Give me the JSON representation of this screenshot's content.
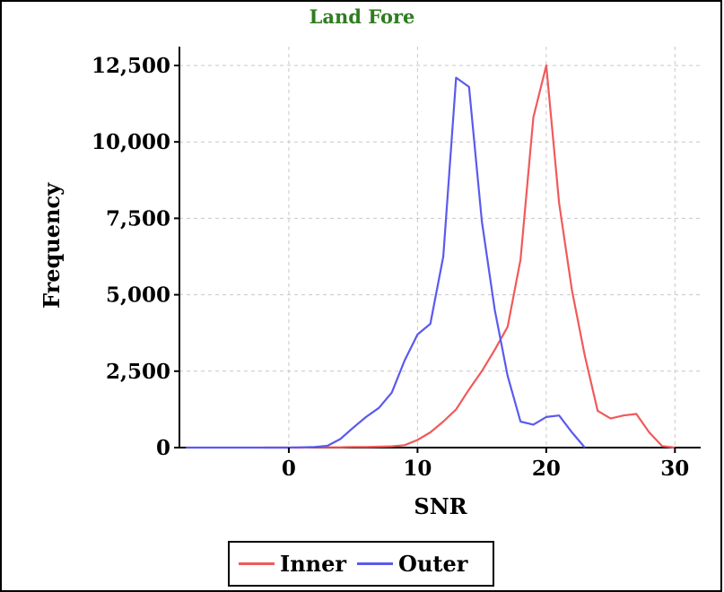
{
  "chart_data": {
    "type": "line",
    "title": "Land Fore",
    "xlabel": "SNR",
    "ylabel": "Frequency",
    "xlim": [
      -8.5,
      32
    ],
    "ylim": [
      0,
      12500
    ],
    "xticks": [
      0,
      10,
      20,
      30
    ],
    "xtick_labels": [
      "0",
      "10",
      "20",
      "30"
    ],
    "yticks": [
      0,
      2500,
      5000,
      7500,
      10000,
      12500
    ],
    "ytick_labels": [
      "0",
      "2,500",
      "5,000",
      "7,500",
      "10,000",
      "12,500"
    ],
    "grid": true,
    "legend_position": "bottom",
    "series": [
      {
        "name": "Inner",
        "color": "#f05a5a",
        "x": [
          -2,
          -1,
          0,
          1,
          2,
          3,
          4,
          5,
          6,
          7,
          8,
          9,
          10,
          11,
          12,
          13,
          14,
          15,
          16,
          17,
          18,
          19,
          20,
          21,
          22,
          23,
          24,
          25,
          26,
          27,
          28,
          29,
          30
        ],
        "y": [
          0,
          0,
          0,
          0,
          10,
          10,
          10,
          20,
          20,
          30,
          40,
          80,
          250,
          500,
          850,
          1250,
          1900,
          2500,
          3200,
          3950,
          6150,
          10800,
          12500,
          8000,
          5150,
          3000,
          1200,
          950,
          1050,
          1100,
          500,
          50,
          0
        ]
      },
      {
        "name": "Outer",
        "color": "#5a5aee",
        "x": [
          -8,
          -7,
          -6,
          -5,
          -4,
          -3,
          -2,
          -1,
          0,
          1,
          2,
          3,
          4,
          5,
          6,
          7,
          8,
          9,
          10,
          11,
          12,
          13,
          14,
          15,
          16,
          17,
          18,
          19,
          20,
          21,
          22,
          23
        ],
        "y": [
          0,
          0,
          0,
          0,
          0,
          0,
          0,
          0,
          0,
          10,
          20,
          60,
          280,
          650,
          1000,
          1300,
          1800,
          2850,
          3700,
          4050,
          6250,
          12100,
          11800,
          7400,
          4500,
          2350,
          850,
          750,
          1000,
          1050,
          500,
          0
        ]
      }
    ]
  }
}
